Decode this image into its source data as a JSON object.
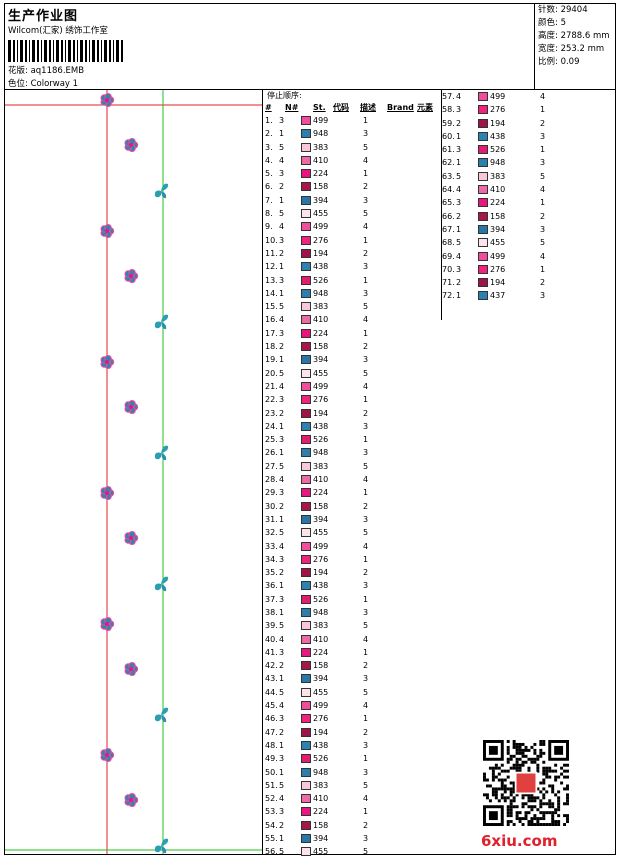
{
  "header": {
    "title": "生产作业图",
    "subtitle": "Wilcom(汇家) 绣饰工作室",
    "design_label": "花版:",
    "design_value": "aq1186.EMB",
    "color_label": "色位:",
    "color_value": "Colorway 1"
  },
  "stats": [
    {
      "label": "针数:",
      "value": "29404"
    },
    {
      "label": "颜色:",
      "value": "5"
    },
    {
      "label": "高度:",
      "value": "2788.6 mm"
    },
    {
      "label": "宽度:",
      "value": "253.2 mm"
    },
    {
      "label": "比例:",
      "value": "0.09"
    }
  ],
  "stop_table": {
    "title": "停止顺序:",
    "headers": [
      "#",
      "N#",
      "St.",
      "代码",
      "描述",
      "Brand",
      "元素"
    ]
  },
  "colors": {
    "499": "#f24c9c",
    "948": "#2a7fb0",
    "383": "#f8c8d8",
    "410": "#ec6aa8",
    "224": "#e8167e",
    "158": "#a8174a",
    "394": "#2a76a8",
    "455": "#fbe4ea",
    "276": "#f0247e",
    "194": "#9c1448",
    "438": "#2984b4",
    "526": "#e41c70",
    "437": "#2a80b0"
  },
  "stops": [
    [
      "1.",
      "3",
      "499",
      "1"
    ],
    [
      "2.",
      "1",
      "948",
      "3"
    ],
    [
      "3.",
      "5",
      "383",
      "5"
    ],
    [
      "4.",
      "4",
      "410",
      "4"
    ],
    [
      "5.",
      "3",
      "224",
      "1"
    ],
    [
      "6.",
      "2",
      "158",
      "2"
    ],
    [
      "7.",
      "1",
      "394",
      "3"
    ],
    [
      "8.",
      "5",
      "455",
      "5"
    ],
    [
      "9.",
      "4",
      "499",
      "4"
    ],
    [
      "10.",
      "3",
      "276",
      "1"
    ],
    [
      "11.",
      "2",
      "194",
      "2"
    ],
    [
      "12.",
      "1",
      "438",
      "3"
    ],
    [
      "13.",
      "3",
      "526",
      "1"
    ],
    [
      "14.",
      "1",
      "948",
      "3"
    ],
    [
      "15.",
      "5",
      "383",
      "5"
    ],
    [
      "16.",
      "4",
      "410",
      "4"
    ],
    [
      "17.",
      "3",
      "224",
      "1"
    ],
    [
      "18.",
      "2",
      "158",
      "2"
    ],
    [
      "19.",
      "1",
      "394",
      "3"
    ],
    [
      "20.",
      "5",
      "455",
      "5"
    ],
    [
      "21.",
      "4",
      "499",
      "4"
    ],
    [
      "22.",
      "3",
      "276",
      "1"
    ],
    [
      "23.",
      "2",
      "194",
      "2"
    ],
    [
      "24.",
      "1",
      "438",
      "3"
    ],
    [
      "25.",
      "3",
      "526",
      "1"
    ],
    [
      "26.",
      "1",
      "948",
      "3"
    ],
    [
      "27.",
      "5",
      "383",
      "5"
    ],
    [
      "28.",
      "4",
      "410",
      "4"
    ],
    [
      "29.",
      "3",
      "224",
      "1"
    ],
    [
      "30.",
      "2",
      "158",
      "2"
    ],
    [
      "31.",
      "1",
      "394",
      "3"
    ],
    [
      "32.",
      "5",
      "455",
      "5"
    ],
    [
      "33.",
      "4",
      "499",
      "4"
    ],
    [
      "34.",
      "3",
      "276",
      "1"
    ],
    [
      "35.",
      "2",
      "194",
      "2"
    ],
    [
      "36.",
      "1",
      "438",
      "3"
    ],
    [
      "37.",
      "3",
      "526",
      "1"
    ],
    [
      "38.",
      "1",
      "948",
      "3"
    ],
    [
      "39.",
      "5",
      "383",
      "5"
    ],
    [
      "40.",
      "4",
      "410",
      "4"
    ],
    [
      "41.",
      "3",
      "224",
      "1"
    ],
    [
      "42.",
      "2",
      "158",
      "2"
    ],
    [
      "43.",
      "1",
      "394",
      "3"
    ],
    [
      "44.",
      "5",
      "455",
      "5"
    ],
    [
      "45.",
      "4",
      "499",
      "4"
    ],
    [
      "46.",
      "3",
      "276",
      "1"
    ],
    [
      "47.",
      "2",
      "194",
      "2"
    ],
    [
      "48.",
      "1",
      "438",
      "3"
    ],
    [
      "49.",
      "3",
      "526",
      "1"
    ],
    [
      "50.",
      "1",
      "948",
      "3"
    ],
    [
      "51.",
      "5",
      "383",
      "5"
    ],
    [
      "52.",
      "4",
      "410",
      "4"
    ],
    [
      "53.",
      "3",
      "224",
      "1"
    ],
    [
      "54.",
      "2",
      "158",
      "2"
    ],
    [
      "55.",
      "1",
      "394",
      "3"
    ],
    [
      "56.",
      "5",
      "455",
      "5"
    ]
  ],
  "stops2": [
    [
      "57.",
      "4",
      "499",
      "4"
    ],
    [
      "58.",
      "3",
      "276",
      "1"
    ],
    [
      "59.",
      "2",
      "194",
      "2"
    ],
    [
      "60.",
      "1",
      "438",
      "3"
    ],
    [
      "61.",
      "3",
      "526",
      "1"
    ],
    [
      "62.",
      "1",
      "948",
      "3"
    ],
    [
      "63.",
      "5",
      "383",
      "5"
    ],
    [
      "64.",
      "4",
      "410",
      "4"
    ],
    [
      "65.",
      "3",
      "224",
      "1"
    ],
    [
      "66.",
      "2",
      "158",
      "2"
    ],
    [
      "67.",
      "1",
      "394",
      "3"
    ],
    [
      "68.",
      "5",
      "455",
      "5"
    ],
    [
      "69.",
      "4",
      "499",
      "4"
    ],
    [
      "70.",
      "3",
      "276",
      "1"
    ],
    [
      "71.",
      "2",
      "194",
      "2"
    ],
    [
      "72.",
      "1",
      "437",
      "3"
    ]
  ],
  "watermark": "6xiu.com"
}
